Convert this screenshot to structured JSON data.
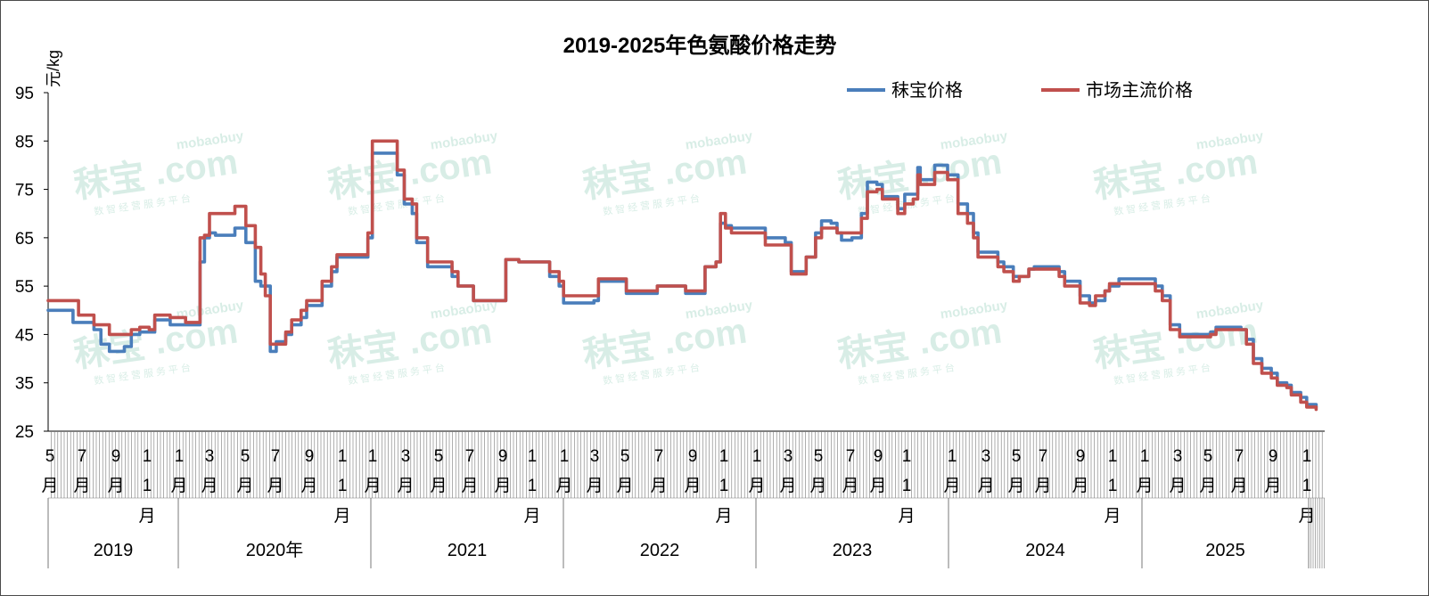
{
  "chart_data": {
    "type": "line",
    "title": "2019-2025年色氨酸价格走势",
    "ylabel": "元/kg",
    "ylim": [
      25,
      95
    ],
    "yticks": [
      25,
      35,
      45,
      55,
      65,
      75,
      85,
      95
    ],
    "grid": false,
    "legend_position": "top-right",
    "x_month_labels": [
      "5\n月",
      "7\n月",
      "9\n月",
      "1\n1\n月",
      "1\n月",
      "3\n月",
      "5\n月",
      "7\n月",
      "9\n月",
      "1\n1\n月",
      "1\n月",
      "3\n月",
      "5\n月",
      "7\n月",
      "9\n月",
      "1\n1\n月",
      "1\n月",
      "3\n月",
      "5\n月",
      "7\n月",
      "9\n月",
      "1\n1\n月",
      "1\n月",
      "3\n月",
      "5\n月",
      "7\n月",
      "9\n月",
      "1\n1\n月",
      "1\n月",
      "3\n月",
      "5\n月",
      "7\n月",
      "9\n月",
      "1\n1\n月",
      "1\n月",
      "3\n月",
      "5\n月",
      "7\n月",
      "9\n月",
      "1\n1\n月"
    ],
    "x_year_labels": [
      "2019",
      "2020年",
      "2021",
      "2022",
      "2023",
      "2024",
      "2025"
    ],
    "series": [
      {
        "name": "秣宝价格",
        "color": "#4a7ebb",
        "points": [
          [
            "2019-05",
            50
          ],
          [
            "2019-06",
            50
          ],
          [
            "2019-06-20",
            47.5
          ],
          [
            "2019-07",
            47.5
          ],
          [
            "2019-08",
            46
          ],
          [
            "2019-08-15",
            43
          ],
          [
            "2019-09",
            41.5
          ],
          [
            "2019-10",
            42.5
          ],
          [
            "2019-10-15",
            45
          ],
          [
            "2019-11",
            45.5
          ],
          [
            "2019-11-20",
            45.5
          ],
          [
            "2019-12",
            48
          ],
          [
            "2020-01",
            47
          ],
          [
            "2020-02",
            47
          ],
          [
            "2020-02-15",
            47
          ],
          [
            "2020-03",
            60
          ],
          [
            "2020-03-10",
            65
          ],
          [
            "2020-03-20",
            66
          ],
          [
            "2020-04",
            65.5
          ],
          [
            "2020-05",
            65.5
          ],
          [
            "2020-05-10",
            67
          ],
          [
            "2020-06",
            64
          ],
          [
            "2020-06-20",
            56
          ],
          [
            "2020-07",
            55
          ],
          [
            "2020-07-10",
            55
          ],
          [
            "2020-07-20",
            41.5
          ],
          [
            "2020-08",
            43.5
          ],
          [
            "2020-08-20",
            45
          ],
          [
            "2020-09",
            47
          ],
          [
            "2020-09-20",
            48.5
          ],
          [
            "2020-10",
            51
          ],
          [
            "2020-11",
            55
          ],
          [
            "2020-11-20",
            58
          ],
          [
            "2020-12",
            61
          ],
          [
            "2021-01",
            61
          ],
          [
            "2021-01-20",
            61
          ],
          [
            "2021-02",
            65
          ],
          [
            "2021-02-10",
            82.5
          ],
          [
            "2021-03",
            82.5
          ],
          [
            "2021-03-15",
            82.5
          ],
          [
            "2021-04",
            78
          ],
          [
            "2021-04-15",
            72
          ],
          [
            "2021-05",
            70
          ],
          [
            "2021-05-10",
            64
          ],
          [
            "2021-06",
            59
          ],
          [
            "2021-07",
            59
          ],
          [
            "2021-07-20",
            57
          ],
          [
            "2021-08",
            55
          ],
          [
            "2021-09",
            52
          ],
          [
            "2021-10",
            52
          ],
          [
            "2021-11",
            52
          ],
          [
            "2021-11-05",
            60.5
          ],
          [
            "2021-12",
            60
          ],
          [
            "2022-01",
            60
          ],
          [
            "2022-02",
            57
          ],
          [
            "2022-02-20",
            55
          ],
          [
            "2022-03",
            51.5
          ],
          [
            "2022-04",
            51.5
          ],
          [
            "2022-05",
            52
          ],
          [
            "2022-05-10",
            56
          ],
          [
            "2022-06",
            56
          ],
          [
            "2022-07",
            56
          ],
          [
            "2022-07-05",
            53.5
          ],
          [
            "2022-08",
            53.5
          ],
          [
            "2022-09",
            53.5
          ],
          [
            "2022-09-05",
            55
          ],
          [
            "2022-10",
            55
          ],
          [
            "2022-11",
            53.5
          ],
          [
            "2022-12",
            53.5
          ],
          [
            "2022-12-10",
            59
          ],
          [
            "2023-01",
            60
          ],
          [
            "2023-01-10",
            68
          ],
          [
            "2023-01-20",
            67.5
          ],
          [
            "2023-02",
            67
          ],
          [
            "2023-03",
            67
          ],
          [
            "2023-04",
            67
          ],
          [
            "2023-04-10",
            65
          ],
          [
            "2023-05",
            65
          ],
          [
            "2023-05-20",
            64
          ],
          [
            "2023-06",
            58
          ],
          [
            "2023-06-20",
            58
          ],
          [
            "2023-07",
            61
          ],
          [
            "2023-07-20",
            66
          ],
          [
            "2023-08",
            68.5
          ],
          [
            "2023-08-20",
            68
          ],
          [
            "2023-09",
            66
          ],
          [
            "2023-09-10",
            64.5
          ],
          [
            "2023-10",
            65
          ],
          [
            "2023-10-20",
            70
          ],
          [
            "2023-11",
            76.5
          ],
          [
            "2023-11-20",
            76
          ],
          [
            "2023-12",
            73.5
          ],
          [
            "2024-01",
            71
          ],
          [
            "2024-01-15",
            74
          ],
          [
            "2024-02",
            74
          ],
          [
            "2024-02-10",
            79.5
          ],
          [
            "2024-02-15",
            77
          ],
          [
            "2024-03",
            77
          ],
          [
            "2024-03-15",
            80
          ],
          [
            "2024-04",
            80
          ],
          [
            "2024-04-10",
            78
          ],
          [
            "2024-05",
            72
          ],
          [
            "2024-05-20",
            70
          ],
          [
            "2024-06",
            66
          ],
          [
            "2024-06-10",
            62
          ],
          [
            "2024-07",
            62
          ],
          [
            "2024-07-20",
            60
          ],
          [
            "2024-08",
            59
          ],
          [
            "2024-08-20",
            57
          ],
          [
            "2024-09",
            57
          ],
          [
            "2024-09-20",
            58.5
          ],
          [
            "2024-10",
            59
          ],
          [
            "2024-11",
            59
          ],
          [
            "2024-11-20",
            58
          ],
          [
            "2024-12",
            56
          ],
          [
            "2025-01",
            53
          ],
          [
            "2025-01-20",
            51.5
          ],
          [
            "2025-02",
            52
          ],
          [
            "2025-02-20",
            54
          ],
          [
            "2025-03",
            55
          ],
          [
            "2025-03-20",
            56.5
          ],
          [
            "2025-05",
            56.5
          ],
          [
            "2025-05-20",
            56.5
          ],
          [
            "2025-06",
            55
          ],
          [
            "2025-06-15",
            53
          ],
          [
            "2025-07",
            47
          ],
          [
            "2025-07-20",
            45
          ],
          [
            "2025-09",
            45
          ],
          [
            "2025-09-20",
            45.5
          ],
          [
            "2025-10",
            46.5
          ],
          [
            "2025-11",
            46.5
          ],
          [
            "2025-11-20",
            46
          ],
          [
            "2025-12",
            44
          ],
          [
            "2025-12-15",
            40
          ],
          [
            "2026-01",
            38
          ],
          [
            "2026-01-20",
            37
          ],
          [
            "2026-02",
            35
          ],
          [
            "2026-02-20",
            34.5
          ],
          [
            "2026-03",
            33
          ],
          [
            "2026-03-20",
            32
          ],
          [
            "2026-04",
            30.5
          ],
          [
            "2026-04-20",
            30
          ]
        ]
      },
      {
        "name": "市场主流价格",
        "color": "#c0504d",
        "points": [
          [
            "2019-05",
            52
          ],
          [
            "2019-06",
            52
          ],
          [
            "2019-06-20",
            52
          ],
          [
            "2019-07",
            49
          ],
          [
            "2019-08",
            47
          ],
          [
            "2019-08-15",
            47
          ],
          [
            "2019-09",
            45
          ],
          [
            "2019-10",
            45
          ],
          [
            "2019-10-15",
            46
          ],
          [
            "2019-11",
            46.5
          ],
          [
            "2019-11-20",
            46
          ],
          [
            "2019-12",
            49
          ],
          [
            "2020-01",
            48.5
          ],
          [
            "2020-02",
            47.5
          ],
          [
            "2020-02-15",
            47.5
          ],
          [
            "2020-03",
            65
          ],
          [
            "2020-03-10",
            65.5
          ],
          [
            "2020-03-20",
            70
          ],
          [
            "2020-04",
            70
          ],
          [
            "2020-05",
            70
          ],
          [
            "2020-05-10",
            71.5
          ],
          [
            "2020-06",
            67.5
          ],
          [
            "2020-06-20",
            63
          ],
          [
            "2020-07",
            57.5
          ],
          [
            "2020-07-10",
            53
          ],
          [
            "2020-07-20",
            43
          ],
          [
            "2020-08",
            43
          ],
          [
            "2020-08-20",
            45.5
          ],
          [
            "2020-09",
            48
          ],
          [
            "2020-09-20",
            50
          ],
          [
            "2020-10",
            52
          ],
          [
            "2020-11",
            56
          ],
          [
            "2020-11-20",
            59
          ],
          [
            "2020-12",
            61.5
          ],
          [
            "2021-01",
            61.5
          ],
          [
            "2021-01-20",
            61.5
          ],
          [
            "2021-02",
            66
          ],
          [
            "2021-02-10",
            85
          ],
          [
            "2021-03",
            85
          ],
          [
            "2021-03-15",
            85
          ],
          [
            "2021-04",
            79
          ],
          [
            "2021-04-15",
            73
          ],
          [
            "2021-05",
            72
          ],
          [
            "2021-05-10",
            65
          ],
          [
            "2021-06",
            60
          ],
          [
            "2021-07",
            60
          ],
          [
            "2021-07-20",
            58
          ],
          [
            "2021-08",
            55
          ],
          [
            "2021-09",
            52
          ],
          [
            "2021-10",
            52
          ],
          [
            "2021-11",
            52
          ],
          [
            "2021-11-05",
            60.5
          ],
          [
            "2021-12",
            60
          ],
          [
            "2022-01",
            60
          ],
          [
            "2022-02",
            58
          ],
          [
            "2022-02-20",
            56
          ],
          [
            "2022-03",
            53
          ],
          [
            "2022-04",
            53
          ],
          [
            "2022-05",
            53
          ],
          [
            "2022-05-10",
            56.5
          ],
          [
            "2022-06",
            56.5
          ],
          [
            "2022-07",
            56.5
          ],
          [
            "2022-07-05",
            54
          ],
          [
            "2022-08",
            54
          ],
          [
            "2022-09",
            54
          ],
          [
            "2022-09-05",
            55
          ],
          [
            "2022-10",
            55
          ],
          [
            "2022-11",
            54
          ],
          [
            "2022-12",
            54
          ],
          [
            "2022-12-10",
            59
          ],
          [
            "2023-01",
            60
          ],
          [
            "2023-01-10",
            70
          ],
          [
            "2023-01-20",
            67
          ],
          [
            "2023-02",
            66
          ],
          [
            "2023-03",
            66
          ],
          [
            "2023-04",
            66
          ],
          [
            "2023-04-10",
            63.5
          ],
          [
            "2023-05",
            63.5
          ],
          [
            "2023-05-20",
            63.5
          ],
          [
            "2023-06",
            57.5
          ],
          [
            "2023-06-20",
            57.5
          ],
          [
            "2023-07",
            61
          ],
          [
            "2023-07-20",
            65
          ],
          [
            "2023-08",
            67
          ],
          [
            "2023-08-20",
            67
          ],
          [
            "2023-09",
            66
          ],
          [
            "2023-09-10",
            66
          ],
          [
            "2023-10",
            66
          ],
          [
            "2023-10-20",
            69
          ],
          [
            "2023-11",
            74.5
          ],
          [
            "2023-11-20",
            75
          ],
          [
            "2023-12",
            73
          ],
          [
            "2024-01",
            70
          ],
          [
            "2024-01-15",
            72
          ],
          [
            "2024-02",
            73
          ],
          [
            "2024-02-10",
            78
          ],
          [
            "2024-02-15",
            76
          ],
          [
            "2024-03",
            76
          ],
          [
            "2024-03-15",
            78.5
          ],
          [
            "2024-04",
            78.5
          ],
          [
            "2024-04-10",
            77
          ],
          [
            "2024-05",
            70
          ],
          [
            "2024-05-20",
            68
          ],
          [
            "2024-06",
            65
          ],
          [
            "2024-06-10",
            61
          ],
          [
            "2024-07",
            61
          ],
          [
            "2024-07-20",
            59
          ],
          [
            "2024-08",
            58
          ],
          [
            "2024-08-20",
            56
          ],
          [
            "2024-09",
            57
          ],
          [
            "2024-09-20",
            58.5
          ],
          [
            "2024-10",
            58.5
          ],
          [
            "2024-11",
            58.5
          ],
          [
            "2024-11-20",
            57
          ],
          [
            "2024-12",
            55
          ],
          [
            "2025-01",
            51.5
          ],
          [
            "2025-01-20",
            51
          ],
          [
            "2025-02",
            53
          ],
          [
            "2025-02-20",
            54
          ],
          [
            "2025-03",
            55.5
          ],
          [
            "2025-03-20",
            55.5
          ],
          [
            "2025-05",
            55.5
          ],
          [
            "2025-05-20",
            55.5
          ],
          [
            "2025-06",
            54
          ],
          [
            "2025-06-15",
            52
          ],
          [
            "2025-07",
            46
          ],
          [
            "2025-07-20",
            44.5
          ],
          [
            "2025-09",
            44.5
          ],
          [
            "2025-09-20",
            45
          ],
          [
            "2025-10",
            46
          ],
          [
            "2025-11",
            46
          ],
          [
            "2025-11-20",
            46
          ],
          [
            "2025-12",
            43
          ],
          [
            "2025-12-15",
            39
          ],
          [
            "2026-01",
            37
          ],
          [
            "2026-01-20",
            36
          ],
          [
            "2026-02",
            34.5
          ],
          [
            "2026-02-20",
            34
          ],
          [
            "2026-03",
            32.5
          ],
          [
            "2026-03-20",
            31
          ],
          [
            "2026-04",
            30
          ],
          [
            "2026-04-20",
            29.5
          ]
        ]
      }
    ]
  },
  "watermark": {
    "brand": "秣宝",
    "domain": ".com",
    "site": "mobaobuy",
    "slogan": "数 智 经 营 服 务 平 台"
  }
}
